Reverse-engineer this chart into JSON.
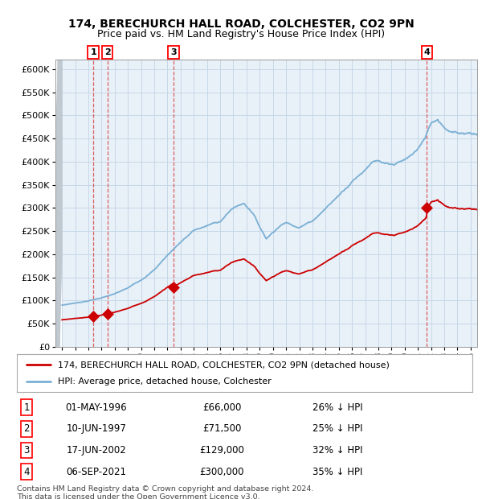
{
  "title1": "174, BERECHURCH HALL ROAD, COLCHESTER, CO2 9PN",
  "title2": "Price paid vs. HM Land Registry's House Price Index (HPI)",
  "legend_line1": "174, BERECHURCH HALL ROAD, COLCHESTER, CO2 9PN (detached house)",
  "legend_line2": "HPI: Average price, detached house, Colchester",
  "sale_points": [
    {
      "label": "1",
      "date": 1996.37,
      "price": 66000,
      "pct": "26% ↓ HPI",
      "datestr": "01-MAY-1996",
      "pricestr": "£66,000"
    },
    {
      "label": "2",
      "date": 1997.44,
      "price": 71500,
      "pct": "25% ↓ HPI",
      "datestr": "10-JUN-1997",
      "pricestr": "£71,500"
    },
    {
      "label": "3",
      "date": 2002.46,
      "price": 129000,
      "pct": "32% ↓ HPI",
      "datestr": "17-JUN-2002",
      "pricestr": "£129,000"
    },
    {
      "label": "4",
      "date": 2021.68,
      "price": 300000,
      "pct": "35% ↓ HPI",
      "datestr": "06-SEP-2021",
      "pricestr": "£300,000"
    }
  ],
  "ylim": [
    0,
    620000
  ],
  "yticks": [
    0,
    50000,
    100000,
    150000,
    200000,
    250000,
    300000,
    350000,
    400000,
    450000,
    500000,
    550000,
    600000
  ],
  "xlim": [
    1993.5,
    2025.5
  ],
  "hpi_color": "#7ab0d4",
  "price_color": "#cc0000",
  "grid_color": "#c8d8e8",
  "bg_color": "#e8f0f8",
  "hatch_color": "#c0c8d0",
  "footer": "Contains HM Land Registry data © Crown copyright and database right 2024.\nThis data is licensed under the Open Government Licence v3.0."
}
